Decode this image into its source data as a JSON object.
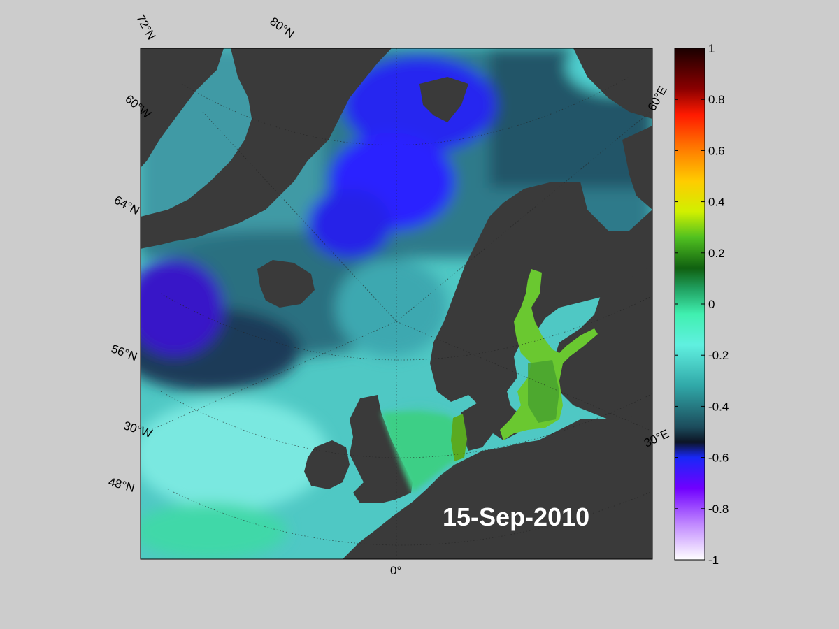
{
  "map": {
    "date": "15-Sep-2010",
    "lat_labels": [
      "72°N",
      "80°N",
      "60°W",
      "64°N",
      "56°N",
      "30°W",
      "48°N"
    ],
    "lon_labels": [
      "0°",
      "60°E",
      "30°E"
    ],
    "land_color": "#3a3a3a",
    "background_color": "#cccccc"
  },
  "colorbar": {
    "range": [
      -1,
      1
    ],
    "tick_labels": [
      "1",
      "0.8",
      "0.6",
      "0.4",
      "0.2",
      "0",
      "-0.2",
      "-0.4",
      "-0.6",
      "-0.8",
      "-1"
    ],
    "colors_top_to_bottom": [
      "#1a0000",
      "#8b0000",
      "#ff2000",
      "#ff8000",
      "#ffd700",
      "#c8f000",
      "#50c020",
      "#106010",
      "#30e090",
      "#60f0e0",
      "#30b0b0",
      "#205060",
      "#101830",
      "#2020ff",
      "#8000ff",
      "#c080ff",
      "#ffffff"
    ]
  }
}
